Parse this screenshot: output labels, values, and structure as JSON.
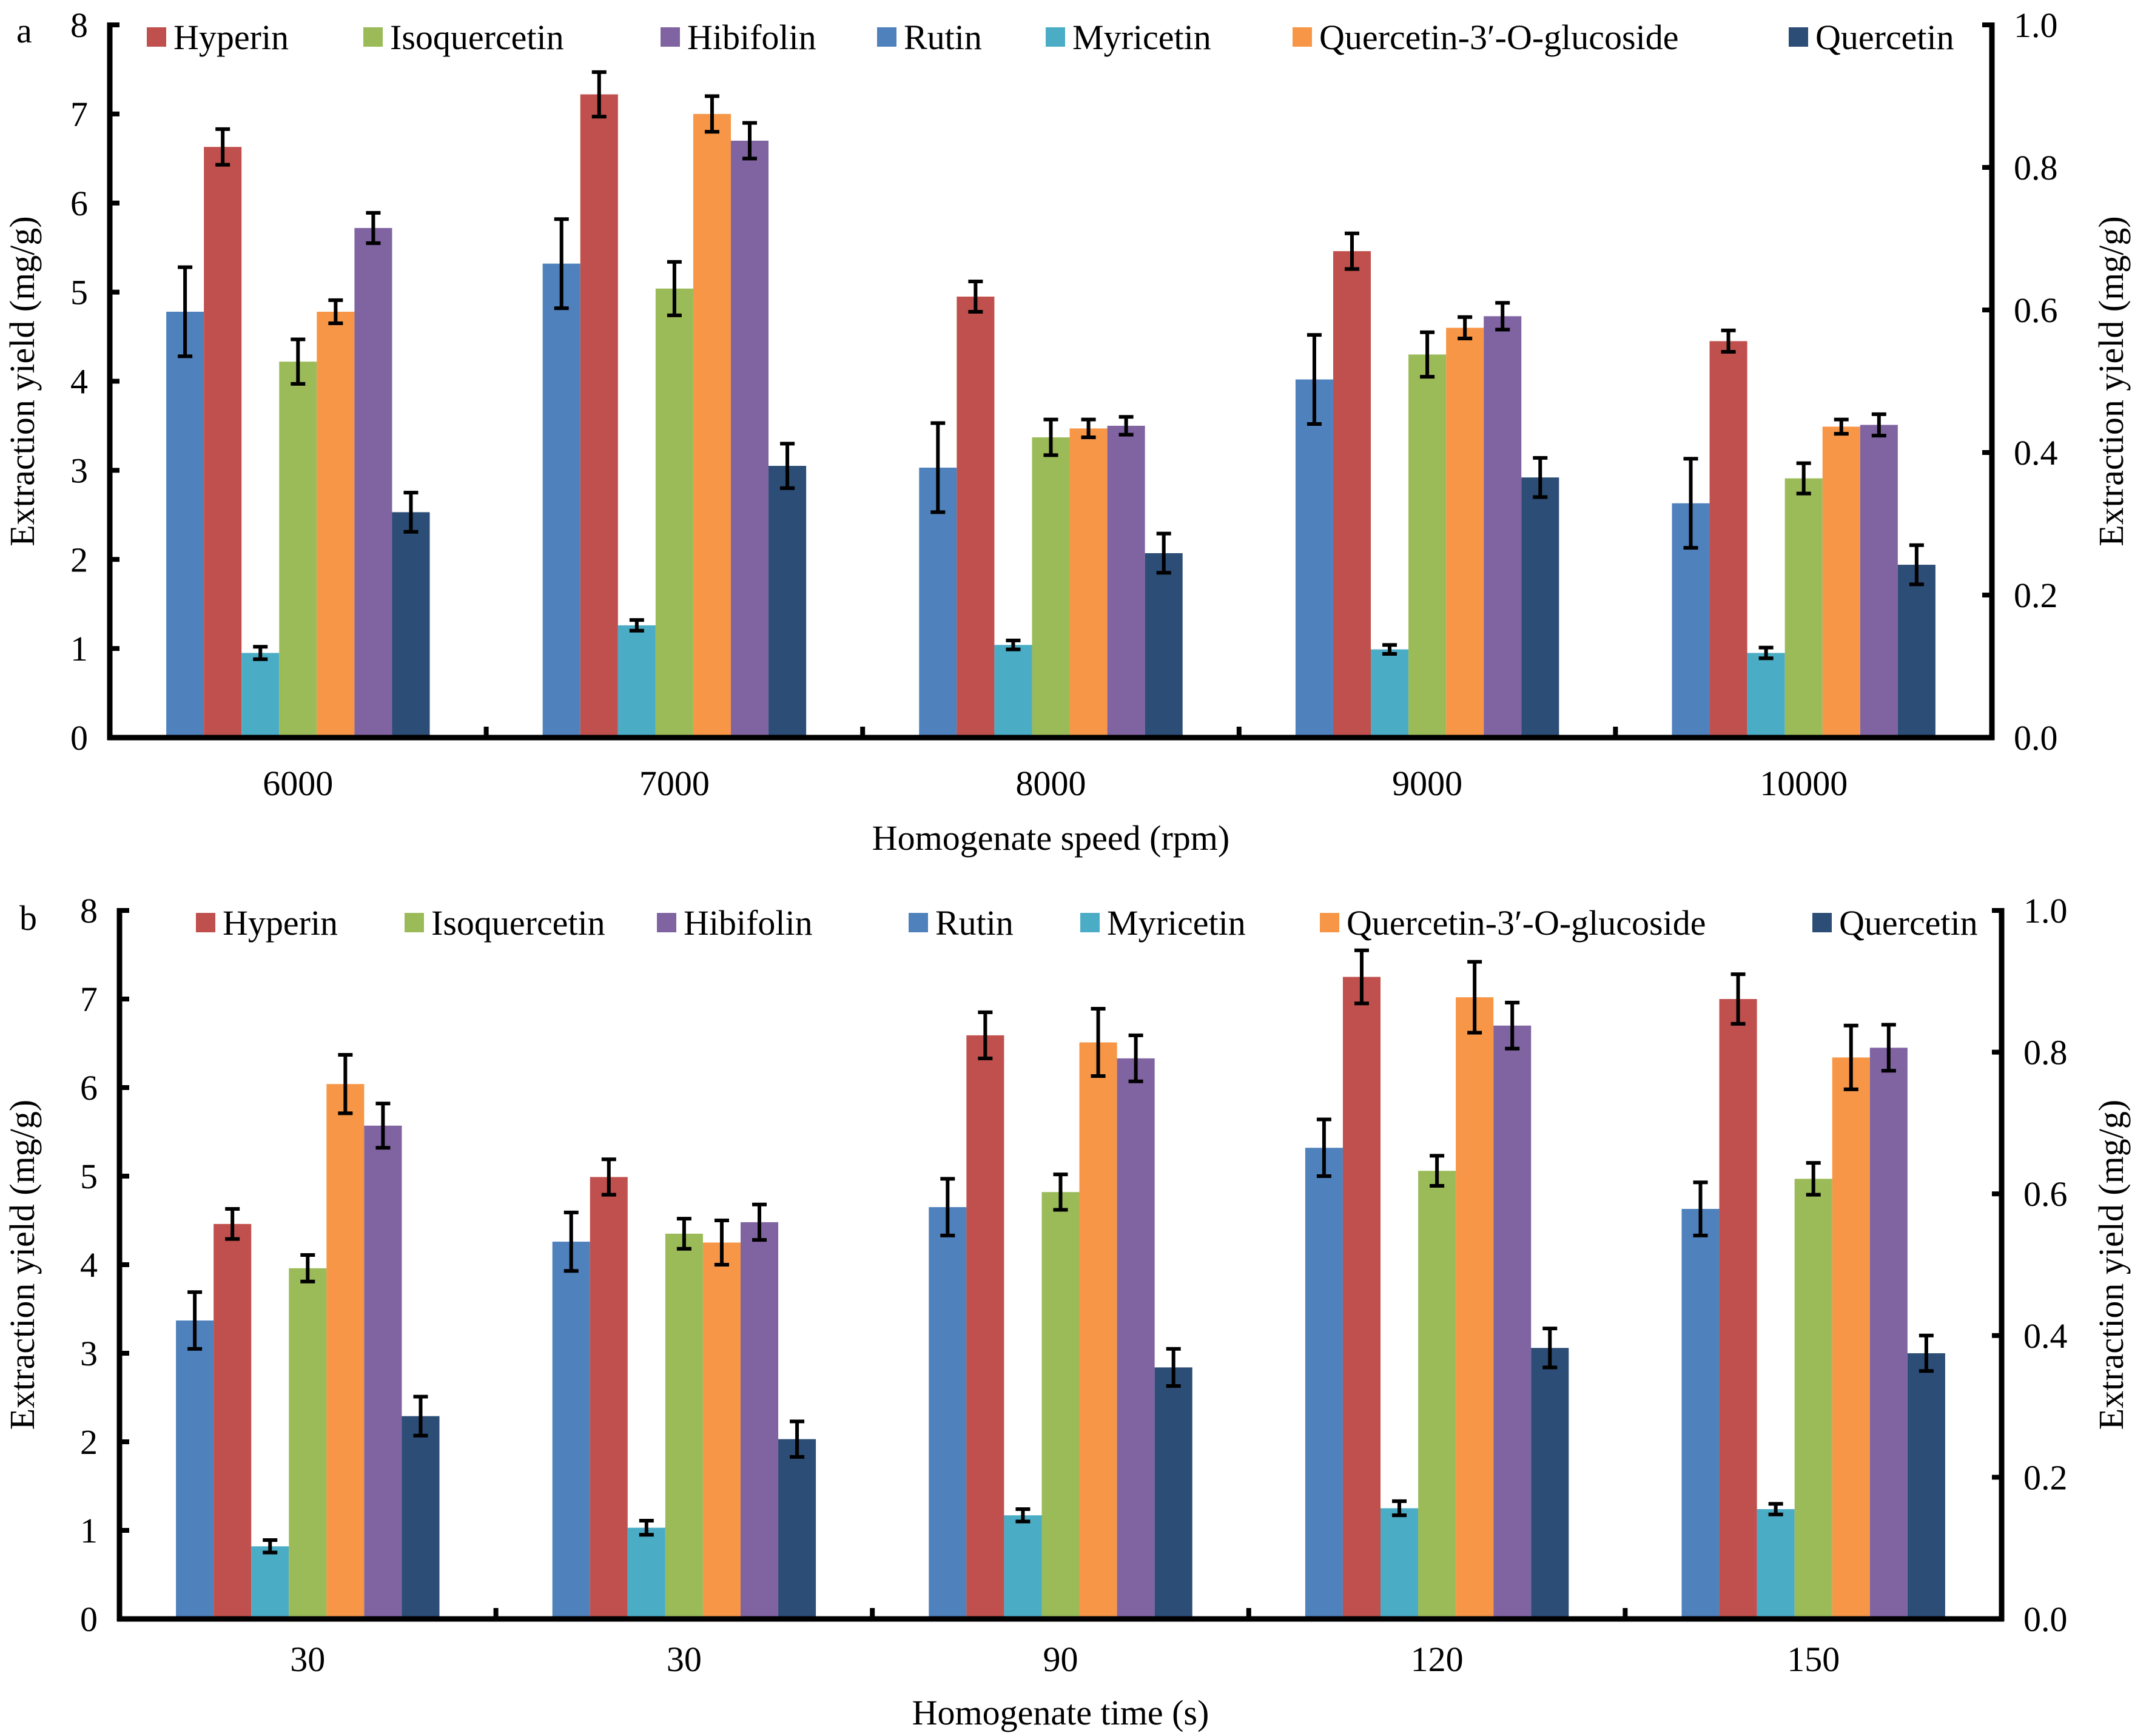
{
  "colors": {
    "Hyperin": "#c0504d",
    "Isoquercetin": "#9bbb59",
    "Hibifolin": "#8064a2",
    "Rutin": "#4f81bd",
    "Myricetin": "#4bacc6",
    "Quercetin-3′-O-glucoside": "#f79646",
    "Quercetin": "#2c4d75",
    "error_bar": "#000000",
    "axis": "#000000"
  },
  "chart_data": [
    {
      "type": "bar",
      "panel_label": "a",
      "xlabel": "Homogenate speed (rpm)",
      "ylabel": "Extraction yield (mg/g)",
      "ylabel_right": "Extraction yield (mg/g)",
      "ylim": [
        0,
        8
      ],
      "yticks": [
        "0",
        "1",
        "2",
        "3",
        "4",
        "5",
        "6",
        "7",
        "8"
      ],
      "ylim_right": [
        0,
        1.0
      ],
      "yticks_right": [
        "0.0",
        "0.2",
        "0.4",
        "0.6",
        "0.8",
        "1.0"
      ],
      "grid": false,
      "legend_position": "top",
      "legend": [
        "Hyperin",
        "Isoquercetin",
        "Hibifolin",
        "Rutin",
        "Myricetin",
        "Quercetin-3′-O-glucoside",
        "Quercetin"
      ],
      "categories": [
        "6000",
        "7000",
        "8000",
        "9000",
        "10000"
      ],
      "series": [
        {
          "name": "Rutin",
          "values": [
            4.78,
            5.32,
            3.03,
            4.02,
            2.63
          ],
          "errors": [
            0.5,
            0.5,
            0.5,
            0.5,
            0.5
          ]
        },
        {
          "name": "Hyperin",
          "values": [
            6.63,
            7.22,
            4.95,
            5.46,
            4.45
          ],
          "errors": [
            0.2,
            0.25,
            0.17,
            0.2,
            0.12
          ]
        },
        {
          "name": "Myricetin",
          "values": [
            0.95,
            1.26,
            1.04,
            0.99,
            0.95
          ],
          "errors": [
            0.07,
            0.06,
            0.05,
            0.05,
            0.06
          ]
        },
        {
          "name": "Isoquercetin",
          "values": [
            4.22,
            5.04,
            3.37,
            4.3,
            2.91
          ],
          "errors": [
            0.25,
            0.3,
            0.2,
            0.25,
            0.17
          ]
        },
        {
          "name": "Quercetin-3′-O-glucoside",
          "values": [
            4.78,
            7.0,
            3.47,
            4.6,
            3.49
          ],
          "errors": [
            0.13,
            0.2,
            0.1,
            0.12,
            0.08
          ]
        },
        {
          "name": "Hibifolin",
          "values": [
            5.72,
            6.7,
            3.5,
            4.73,
            3.51
          ],
          "errors": [
            0.17,
            0.2,
            0.1,
            0.15,
            0.12
          ]
        },
        {
          "name": "Quercetin",
          "values": [
            2.53,
            3.05,
            2.07,
            2.92,
            1.94
          ],
          "errors": [
            0.22,
            0.25,
            0.22,
            0.22,
            0.22
          ]
        }
      ]
    },
    {
      "type": "bar",
      "panel_label": "b",
      "xlabel": "Homogenate time (s)",
      "ylabel": "Extraction yield (mg/g)",
      "ylabel_right": "Extraction yield (mg/g)",
      "ylim": [
        0,
        8
      ],
      "yticks": [
        "0",
        "1",
        "2",
        "3",
        "4",
        "5",
        "6",
        "7",
        "8"
      ],
      "ylim_right": [
        0,
        1.0
      ],
      "yticks_right": [
        "0.0",
        "0.2",
        "0.4",
        "0.6",
        "0.8",
        "1.0"
      ],
      "grid": false,
      "legend_position": "top",
      "legend": [
        "Hyperin",
        "Isoquercetin",
        "Hibifolin",
        "Rutin",
        "Myricetin",
        "Quercetin-3′-O-glucoside",
        "Quercetin"
      ],
      "categories": [
        "30",
        "30",
        "90",
        "120",
        "150"
      ],
      "series": [
        {
          "name": "Rutin",
          "values": [
            3.37,
            4.26,
            4.65,
            5.32,
            4.63
          ],
          "errors": [
            0.32,
            0.33,
            0.32,
            0.32,
            0.3
          ]
        },
        {
          "name": "Hyperin",
          "values": [
            4.46,
            4.99,
            6.59,
            7.25,
            7.0
          ],
          "errors": [
            0.17,
            0.2,
            0.26,
            0.3,
            0.28
          ]
        },
        {
          "name": "Myricetin",
          "values": [
            0.82,
            1.03,
            1.17,
            1.25,
            1.24
          ],
          "errors": [
            0.07,
            0.08,
            0.07,
            0.08,
            0.06
          ]
        },
        {
          "name": "Isoquercetin",
          "values": [
            3.96,
            4.35,
            4.82,
            5.06,
            4.97
          ],
          "errors": [
            0.15,
            0.17,
            0.2,
            0.17,
            0.18
          ]
        },
        {
          "name": "Quercetin-3′-O-glucoside",
          "values": [
            6.04,
            4.25,
            6.51,
            7.02,
            6.34
          ],
          "errors": [
            0.33,
            0.25,
            0.38,
            0.4,
            0.36
          ]
        },
        {
          "name": "Hibifolin",
          "values": [
            5.57,
            4.48,
            6.33,
            6.7,
            6.45
          ],
          "errors": [
            0.25,
            0.2,
            0.26,
            0.26,
            0.26
          ]
        },
        {
          "name": "Quercetin",
          "values": [
            2.29,
            2.03,
            2.84,
            3.06,
            3.0
          ],
          "errors": [
            0.22,
            0.2,
            0.21,
            0.22,
            0.2
          ]
        }
      ]
    }
  ]
}
